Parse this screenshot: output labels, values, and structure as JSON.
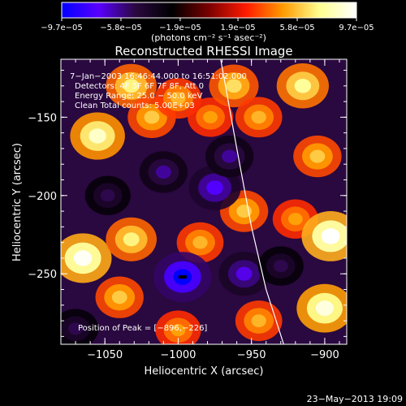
{
  "chart_data": {
    "type": "heatmap",
    "title": "Reconstructed RHESSI Image",
    "xlabel": "Heliocentric X (arcsec)",
    "ylabel": "Heliocentric Y (arcsec)",
    "xlim": [
      -1080,
      -885
    ],
    "ylim": [
      -295,
      -113
    ],
    "xticks": [
      -1050,
      -1000,
      -950,
      -900
    ],
    "xtick_labels": [
      "−1050",
      "−1000",
      "−950",
      "−900"
    ],
    "yticks": [
      -150,
      -200,
      -250
    ],
    "ytick_labels": [
      "−150",
      "−200",
      "−250"
    ],
    "colorbar": {
      "range": [
        -9.7e-05,
        9.7e-05
      ],
      "ticks": [
        -9.7e-05,
        -5.8e-05,
        -1.9e-05,
        1.9e-05,
        5.8e-05,
        9.7e-05
      ],
      "tick_labels": [
        "−9.7e−05",
        "−5.8e−05",
        "−1.9e−05",
        "1.9e−05",
        "5.8e−05",
        "9.7e−05"
      ],
      "unit_label": "(photons cm⁻² s⁻¹ asec⁻²)",
      "colors": [
        "#0000ff",
        "#5a00ff",
        "#2a0840",
        "#000000",
        "#7a0000",
        "#ff1a00",
        "#ff9a00",
        "#ffff90",
        "#ffffff"
      ]
    },
    "annotations": [
      "7−Jan−2003 16:46:44.000 to 16:51:02.000",
      "Detectors: 4F 5F 6F 7F 8F, Att 0",
      "Energy Range: 25.0 − 50.0 keV",
      "Clean    Total counts: 5.00E+03"
    ],
    "peak_label": "Position of Peak = [−896,−226]",
    "peak_position": [
      -896,
      -226
    ],
    "min_marker": [
      -997,
      -252
    ],
    "limb_curve": [
      [
        -971,
        -113
      ],
      [
        -960,
        -170
      ],
      [
        -950,
        -220
      ],
      [
        -940,
        -260
      ],
      [
        -928,
        -295
      ]
    ],
    "blobs": [
      {
        "x": -1055,
        "y": -162,
        "v": 8.5e-05
      },
      {
        "x": -1032,
        "y": -130,
        "v": 7e-05
      },
      {
        "x": -1018,
        "y": -150,
        "v": 6e-05
      },
      {
        "x": -1000,
        "y": -138,
        "v": 5.5e-05
      },
      {
        "x": -978,
        "y": -150,
        "v": 5e-05
      },
      {
        "x": -962,
        "y": -130,
        "v": 6.5e-05
      },
      {
        "x": -945,
        "y": -150,
        "v": 5.5e-05
      },
      {
        "x": -1065,
        "y": -240,
        "v": 9.5e-05
      },
      {
        "x": -1032,
        "y": -228,
        "v": 7e-05
      },
      {
        "x": -1040,
        "y": -265,
        "v": 6e-05
      },
      {
        "x": -985,
        "y": -230,
        "v": 5.5e-05
      },
      {
        "x": -955,
        "y": -210,
        "v": 6e-05
      },
      {
        "x": -915,
        "y": -130,
        "v": 7.5e-05
      },
      {
        "x": -905,
        "y": -175,
        "v": 6e-05
      },
      {
        "x": -920,
        "y": -215,
        "v": 5e-05
      },
      {
        "x": -896,
        "y": -226,
        "v": 9.7e-05
      },
      {
        "x": -900,
        "y": -272,
        "v": 9e-05
      },
      {
        "x": -945,
        "y": -280,
        "v": 5.5e-05
      },
      {
        "x": -1000,
        "y": -286,
        "v": 5e-05
      },
      {
        "x": -1048,
        "y": -200,
        "v": -5e-05
      },
      {
        "x": -1010,
        "y": -185,
        "v": -6e-05
      },
      {
        "x": -975,
        "y": -195,
        "v": -7.5e-05
      },
      {
        "x": -997,
        "y": -252,
        "v": -9.7e-05
      },
      {
        "x": -955,
        "y": -250,
        "v": -7e-05
      },
      {
        "x": -965,
        "y": -175,
        "v": -6e-05
      },
      {
        "x": -930,
        "y": -245,
        "v": -5e-05
      },
      {
        "x": -1070,
        "y": -285,
        "v": -5e-05
      }
    ]
  },
  "footer": {
    "date": "23−May−2013 19:09"
  }
}
